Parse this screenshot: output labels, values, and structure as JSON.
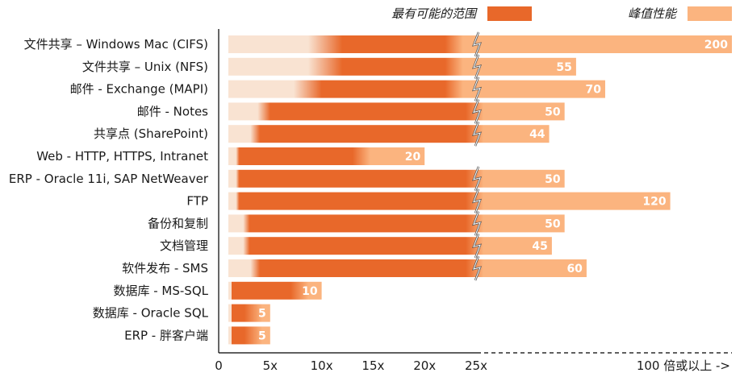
{
  "chart_data": {
    "type": "bar",
    "orientation": "horizontal",
    "legend": {
      "placement": "top-right",
      "items": [
        {
          "name": "最有可能的范围",
          "color": "#e8682a"
        },
        {
          "name": "峰值性能",
          "color": "#fbb47f"
        }
      ]
    },
    "x_ticks": [
      "0",
      "5x",
      "10x",
      "15x",
      "20x",
      "25x"
    ],
    "x_overflow_label": "100 倍或以上 ->",
    "colors": {
      "range": "#e8682a",
      "peak": "#fbb47f",
      "fade": "#f9e3d2",
      "axis": "#000000"
    },
    "categories": [
      {
        "label": "文件共享 – Windows Mac (CIFS)",
        "peak": 200,
        "peak_label": "200",
        "range_start": 12,
        "range_end": 22,
        "broken": true
      },
      {
        "label": "文件共享 – Unix (NFS)",
        "peak": 55,
        "peak_label": "55",
        "range_start": 12,
        "range_end": 22,
        "broken": true
      },
      {
        "label": "邮件 - Exchange (MAPI)",
        "peak": 70,
        "peak_label": "70",
        "range_start": 10,
        "range_end": 22,
        "broken": true
      },
      {
        "label": "邮件 - Notes",
        "peak": 50,
        "peak_label": "50",
        "range_start": 5,
        "range_end": 24,
        "broken": true
      },
      {
        "label": "共享点 (SharePoint)",
        "peak": 44,
        "peak_label": "44",
        "range_start": 4,
        "range_end": 24,
        "broken": true
      },
      {
        "label": "Web - HTTP, HTTPS, Intranet",
        "peak": 20,
        "peak_label": "20",
        "range_start": 2,
        "range_end": 13,
        "broken": false
      },
      {
        "label": "ERP - Oracle 11i, SAP NetWeaver",
        "peak": 50,
        "peak_label": "50",
        "range_start": 2,
        "range_end": 24,
        "broken": true
      },
      {
        "label": "FTP",
        "peak": 120,
        "peak_label": "120",
        "range_start": 2,
        "range_end": 24,
        "broken": true
      },
      {
        "label": "备份和复制",
        "peak": 50,
        "peak_label": "50",
        "range_start": 3,
        "range_end": 24,
        "broken": true
      },
      {
        "label": "文档管理",
        "peak": 45,
        "peak_label": "45",
        "range_start": 3,
        "range_end": 24,
        "broken": true
      },
      {
        "label": "软件发布 - SMS",
        "peak": 60,
        "peak_label": "60",
        "range_start": 4,
        "range_end": 24,
        "broken": true
      },
      {
        "label": "数据库 - MS-SQL",
        "peak": 10,
        "peak_label": "10",
        "range_start": 1,
        "range_end": 7,
        "broken": false
      },
      {
        "label": "数据库 - Oracle SQL",
        "peak": 5,
        "peak_label": "5",
        "range_start": 0.5,
        "range_end": 2.5,
        "broken": false
      },
      {
        "label": "ERP - 胖客户端",
        "peak": 5,
        "peak_label": "5",
        "range_start": 0.5,
        "range_end": 2.5,
        "broken": false
      }
    ]
  }
}
